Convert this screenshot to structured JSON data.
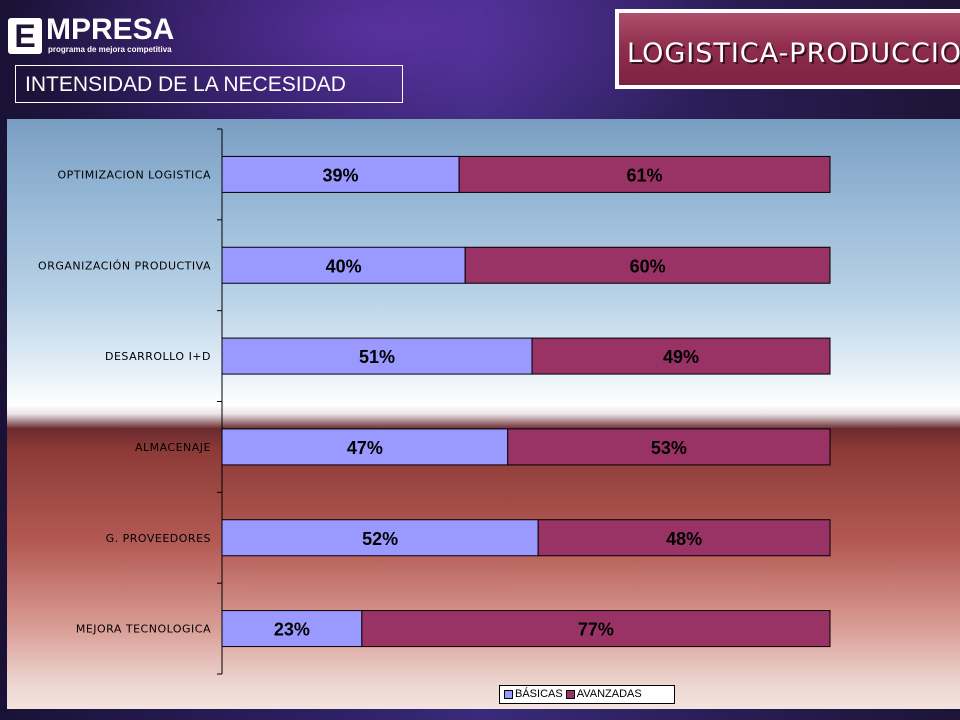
{
  "logo": {
    "letter": "E",
    "word": "MPRESA",
    "tagline": "programa de mejora competitiva"
  },
  "section_title": "INTENSIDAD DE LA NECESIDAD",
  "banner_title": "LOGISTICA-PRODUCCION",
  "colors": {
    "basicas": "#9999ff",
    "avanzadas": "#993366",
    "axis": "#000000"
  },
  "chart_data": {
    "type": "bar",
    "orientation": "horizontal",
    "stacked": "percent",
    "categories": [
      "OPTIMIZACION LOGISTICA",
      "ORGANIZACIÓN PRODUCTIVA",
      "DESARROLLO I+D",
      "ALMACENAJE",
      "G. PROVEEDORES",
      "MEJORA TECNOLOGICA"
    ],
    "series": [
      {
        "name": "BÁSICAS",
        "values": [
          39,
          40,
          51,
          47,
          52,
          23
        ],
        "labels": [
          "39%",
          "40%",
          "51%",
          "47%",
          "52%",
          "23%"
        ]
      },
      {
        "name": "AVANZADAS",
        "values": [
          61,
          60,
          49,
          53,
          48,
          77
        ],
        "labels": [
          "61%",
          "60%",
          "49%",
          "53%",
          "48%",
          "77%"
        ]
      }
    ],
    "xlim": [
      0,
      100
    ],
    "legend_position": "bottom"
  }
}
